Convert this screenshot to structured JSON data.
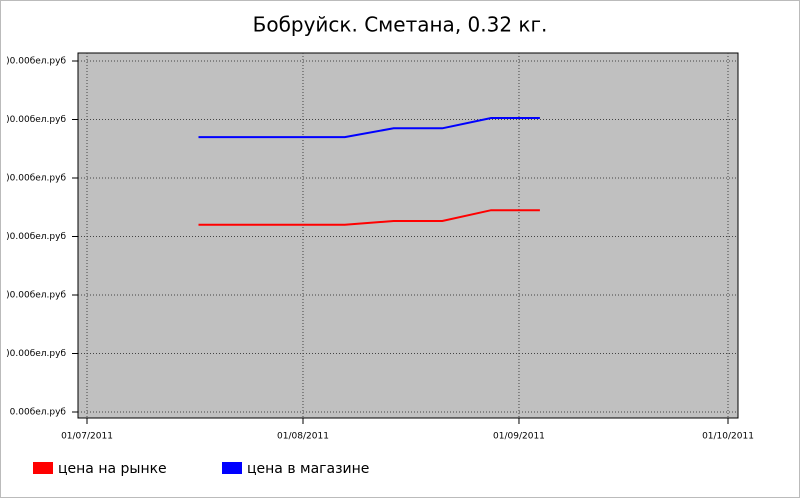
{
  "chart_data": {
    "type": "line",
    "title": "Бобруйск. Сметана, 0.32 кг.",
    "x": [
      "2011-07-17",
      "2011-07-24",
      "2011-07-31",
      "2011-08-07",
      "2011-08-14",
      "2011-08-21",
      "2011-08-28",
      "2011-09-04"
    ],
    "series": [
      {
        "name": "цена на рынке",
        "color": "#ff0000",
        "values": [
          6400,
          6400,
          6400,
          6400,
          6530,
          6530,
          6900,
          6900
        ]
      },
      {
        "name": "цена в магазине",
        "color": "#0000ff",
        "values": [
          9400,
          9400,
          9400,
          9400,
          9700,
          9700,
          10050,
          10050
        ]
      }
    ],
    "xlim": [
      "2011-07-01",
      "2011-10-01"
    ],
    "xticks": [
      {
        "value": "2011-07-01",
        "label": "01/07/2011"
      },
      {
        "value": "2011-08-01",
        "label": "01/08/2011"
      },
      {
        "value": "2011-09-01",
        "label": "01/09/2011"
      },
      {
        "value": "2011-10-01",
        "label": "01/10/2011"
      }
    ],
    "ylim": [
      0,
      12000
    ],
    "yticks": [
      {
        "value": 0,
        "label": "0.00бел.руб"
      },
      {
        "value": 2000,
        "label": ")0.00бел.руб"
      },
      {
        "value": 4000,
        "label": ")0.00бел.руб"
      },
      {
        "value": 6000,
        "label": ")0.00бел.руб"
      },
      {
        "value": 8000,
        "label": ")0.00бел.руб"
      },
      {
        "value": 10000,
        "label": ")0.00бел.руб"
      },
      {
        "value": 12000,
        "label": ")0.00бел.руб"
      }
    ],
    "grid": true,
    "legend": "bottom"
  }
}
